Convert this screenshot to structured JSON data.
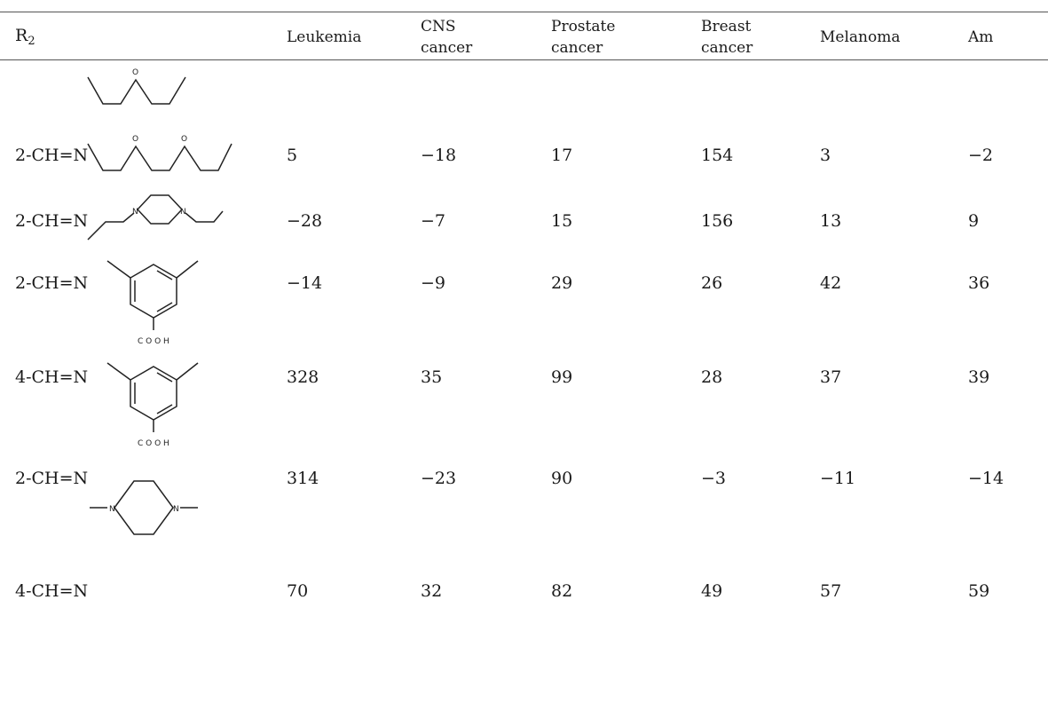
{
  "table": {
    "headers": {
      "r2_main": "R",
      "r2_sub": "2",
      "leukemia": "Leukemia",
      "cns_1": "CNS",
      "cns_2": "cancer",
      "prostate_1": "Prostate",
      "prostate_2": "cancer",
      "breast_1": "Breast",
      "breast_2": "cancer",
      "melanoma": "Melanoma",
      "am": "Am"
    },
    "rows": [
      {
        "r2": "2-CH=N",
        "leukemia": "5",
        "cns": "−18",
        "prostate": "17",
        "breast": "154",
        "melanoma": "3",
        "am": "−2"
      },
      {
        "r2": "2-CH=N",
        "leukemia": "−28",
        "cns": "−7",
        "prostate": "15",
        "breast": "156",
        "melanoma": "13",
        "am": "9"
      },
      {
        "r2": "2-CH=N",
        "leukemia": "−14",
        "cns": "−9",
        "prostate": "29",
        "breast": "26",
        "melanoma": "42",
        "am": "36"
      },
      {
        "r2": "4-CH=N",
        "leukemia": "328",
        "cns": "35",
        "prostate": "99",
        "breast": "28",
        "melanoma": "37",
        "am": "39"
      },
      {
        "r2": "2-CH=N",
        "leukemia": "314",
        "cns": "−23",
        "prostate": "90",
        "breast": "−3",
        "melanoma": "−11",
        "am": "−14"
      },
      {
        "r2": "4-CH=N",
        "leukemia": "70",
        "cns": "32",
        "prostate": "82",
        "breast": "49",
        "melanoma": "57",
        "am": "59"
      }
    ]
  },
  "structures": {
    "o_label": "O",
    "n_label": "N",
    "cooh_label": "C O O H"
  }
}
